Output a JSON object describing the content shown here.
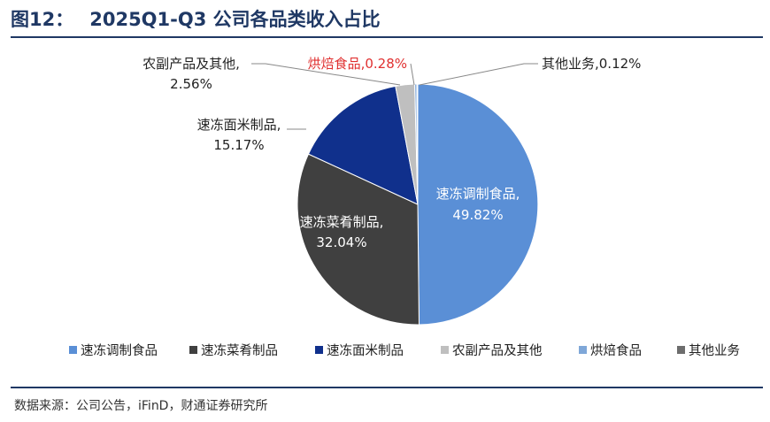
{
  "header": {
    "figure_no": "图12：",
    "title": "2025Q1-Q3 公司各品类收入占比"
  },
  "footer": {
    "source": "数据来源：公司公告，iFinD，财通证券研究所"
  },
  "colors": {
    "title": "#1f3864",
    "highlight_label": "#e03030"
  },
  "chart_data": {
    "type": "pie",
    "legend_position": "bottom",
    "slices": [
      {
        "name": "速冻调制食品",
        "value": 49.82,
        "label": "49.82%",
        "color": "#5a8fd6"
      },
      {
        "name": "速冻菜肴制品",
        "value": 32.04,
        "label": "32.04%",
        "color": "#404040"
      },
      {
        "name": "速冻面米制品",
        "value": 15.17,
        "label": "15.17%",
        "color": "#10308c"
      },
      {
        "name": "农副产品及其他",
        "value": 2.56,
        "label": "2.56%",
        "color": "#bfbfbf"
      },
      {
        "name": "烘焙食品",
        "value": 0.28,
        "label": "0.28%",
        "color": "#7fa7d8"
      },
      {
        "name": "其他业务",
        "value": 0.12,
        "label": "0.12%",
        "color": "#6d6d6d"
      }
    ]
  }
}
